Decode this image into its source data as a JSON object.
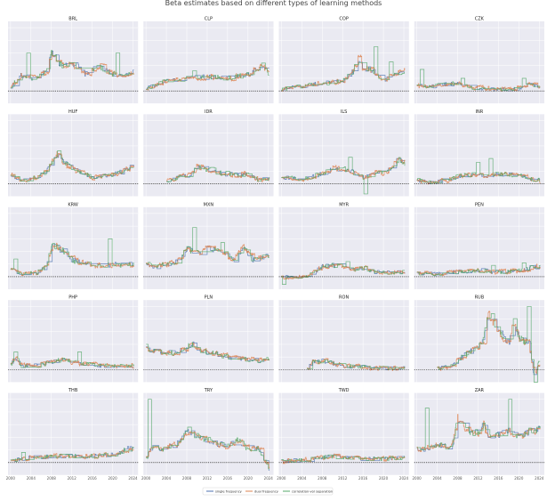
{
  "figure": {
    "title": "Beta estimates based on different types of learning methods"
  },
  "legend": {
    "placement": "bottom-center",
    "items": [
      {
        "label": "single frequency",
        "color": "#4c72b0"
      },
      {
        "label": "dual frequency",
        "color": "#dd8452"
      },
      {
        "label": "correlation-vol separation",
        "color": "#55a868"
      }
    ]
  },
  "chart_data": {
    "type": "line",
    "grid": true,
    "background": "#eaeaf2",
    "reference_line": {
      "y": 0,
      "style": "dashed",
      "color": "#000000"
    },
    "xlim": [
      1999.5,
      2025
    ],
    "ylim": [
      -1,
      5.5
    ],
    "x_ticks": [
      2000,
      2004,
      2008,
      2012,
      2016,
      2020,
      2024
    ],
    "x_tick_labels": [
      "2000",
      "2004",
      "2008",
      "2012",
      "2016",
      "2020",
      "2024"
    ],
    "series_names": [
      "single frequency",
      "dual frequency",
      "correlation-vol separation"
    ],
    "panels": [
      {
        "name": "BRL",
        "start": 2000,
        "knots": [
          [
            2000,
            0.3
          ],
          [
            2002,
            1.2
          ],
          [
            2005,
            1.0
          ],
          [
            2007,
            1.6
          ],
          [
            2008,
            3.0
          ],
          [
            2010,
            2.0
          ],
          [
            2013,
            2.0
          ],
          [
            2015,
            1.2
          ],
          [
            2017,
            2.0
          ],
          [
            2020,
            1.3
          ],
          [
            2022,
            1.2
          ],
          [
            2024,
            1.6
          ]
        ],
        "spikes": [
          [
            2003.5,
            3.0
          ],
          [
            2008.5,
            2.8
          ],
          [
            2021,
            3.0
          ]
        ]
      },
      {
        "name": "CLP",
        "start": 2000,
        "knots": [
          [
            2000,
            0.2
          ],
          [
            2004,
            0.8
          ],
          [
            2008,
            1.0
          ],
          [
            2012,
            1.1
          ],
          [
            2016,
            1.0
          ],
          [
            2020,
            1.3
          ],
          [
            2022,
            1.8
          ],
          [
            2023,
            1.9
          ],
          [
            2024,
            1.4
          ]
        ],
        "spikes": [
          [
            2009.5,
            1.6
          ],
          [
            2023,
            2.2
          ]
        ]
      },
      {
        "name": "COP",
        "start": 2000,
        "knots": [
          [
            2000,
            0.1
          ],
          [
            2004,
            0.4
          ],
          [
            2008,
            0.6
          ],
          [
            2012,
            0.8
          ],
          [
            2014,
            1.5
          ],
          [
            2015,
            2.6
          ],
          [
            2016,
            1.8
          ],
          [
            2018,
            1.6
          ],
          [
            2020,
            0.8
          ],
          [
            2022,
            1.3
          ],
          [
            2024,
            1.6
          ]
        ],
        "spikes": [
          [
            2018.5,
            3.5
          ],
          [
            2021.5,
            2.3
          ]
        ]
      },
      {
        "name": "CZK",
        "start": 2000,
        "knots": [
          [
            2000,
            0.5
          ],
          [
            2002,
            0.3
          ],
          [
            2005,
            0.5
          ],
          [
            2008,
            0.6
          ],
          [
            2010,
            0.3
          ],
          [
            2013,
            0.2
          ],
          [
            2016,
            0.1
          ],
          [
            2020,
            0.2
          ],
          [
            2022,
            0.6
          ],
          [
            2024,
            0.3
          ]
        ],
        "spikes": [
          [
            2001,
            1.7
          ],
          [
            2009,
            1.0
          ],
          [
            2021,
            1.0
          ]
        ]
      },
      {
        "name": "HUF",
        "start": 2000,
        "knots": [
          [
            2000,
            0.7
          ],
          [
            2002,
            0.2
          ],
          [
            2005,
            0.5
          ],
          [
            2007,
            1.0
          ],
          [
            2009,
            2.3
          ],
          [
            2011,
            1.5
          ],
          [
            2013,
            1.0
          ],
          [
            2016,
            0.5
          ],
          [
            2020,
            0.7
          ],
          [
            2022,
            1.0
          ],
          [
            2024,
            1.4
          ]
        ],
        "spikes": [
          [
            2009.5,
            2.6
          ]
        ]
      },
      {
        "name": "IDR",
        "start": 2004,
        "knots": [
          [
            2004,
            0.2
          ],
          [
            2007,
            0.6
          ],
          [
            2009,
            0.8
          ],
          [
            2010,
            1.4
          ],
          [
            2012,
            1.1
          ],
          [
            2015,
            0.8
          ],
          [
            2018,
            0.7
          ],
          [
            2020,
            0.8
          ],
          [
            2022,
            0.3
          ],
          [
            2024,
            0.4
          ]
        ],
        "spikes": [
          [
            2013,
            1.3
          ],
          [
            2016,
            1.0
          ]
        ]
      },
      {
        "name": "ILS",
        "start": 2000,
        "knots": [
          [
            2000,
            0.5
          ],
          [
            2004,
            0.4
          ],
          [
            2008,
            0.8
          ],
          [
            2010,
            1.2
          ],
          [
            2012,
            1.2
          ],
          [
            2014,
            0.9
          ],
          [
            2016,
            0.5
          ],
          [
            2018,
            0.8
          ],
          [
            2020,
            0.9
          ],
          [
            2022,
            1.5
          ],
          [
            2023,
            2.0
          ],
          [
            2024,
            1.6
          ]
        ],
        "spikes": [
          [
            2013.5,
            2.1
          ],
          [
            2016.5,
            -0.8
          ]
        ]
      },
      {
        "name": "INR",
        "start": 2000,
        "knots": [
          [
            2000,
            0.3
          ],
          [
            2002,
            0.1
          ],
          [
            2006,
            0.3
          ],
          [
            2008,
            0.6
          ],
          [
            2010,
            0.7
          ],
          [
            2012,
            0.8
          ],
          [
            2014,
            0.6
          ],
          [
            2016,
            0.8
          ],
          [
            2018,
            0.7
          ],
          [
            2020,
            0.7
          ],
          [
            2022,
            0.4
          ],
          [
            2024,
            0.3
          ]
        ],
        "spikes": [
          [
            2012,
            1.7
          ],
          [
            2014.5,
            2.0
          ]
        ]
      },
      {
        "name": "KRW",
        "start": 2000,
        "knots": [
          [
            2000,
            0.6
          ],
          [
            2002,
            0.2
          ],
          [
            2005,
            0.3
          ],
          [
            2007,
            0.8
          ],
          [
            2008,
            2.6
          ],
          [
            2010,
            2.1
          ],
          [
            2012,
            1.3
          ],
          [
            2015,
            1.0
          ],
          [
            2018,
            0.8
          ],
          [
            2020,
            1.0
          ],
          [
            2022,
            0.9
          ],
          [
            2024,
            1.0
          ]
        ],
        "spikes": [
          [
            2001,
            1.4
          ],
          [
            2019.5,
            3.0
          ]
        ]
      },
      {
        "name": "MXN",
        "start": 2000,
        "knots": [
          [
            2000,
            1.0
          ],
          [
            2002,
            0.8
          ],
          [
            2004,
            1.0
          ],
          [
            2006,
            1.2
          ],
          [
            2008,
            2.2
          ],
          [
            2010,
            1.8
          ],
          [
            2012,
            2.2
          ],
          [
            2015,
            2.0
          ],
          [
            2017,
            1.2
          ],
          [
            2019,
            2.3
          ],
          [
            2021,
            1.3
          ],
          [
            2024,
            1.7
          ]
        ],
        "spikes": [
          [
            2009.5,
            3.9
          ],
          [
            2015,
            2.7
          ]
        ]
      },
      {
        "name": "MYR",
        "start": 2000,
        "knots": [
          [
            2000,
            0
          ],
          [
            2005,
            0
          ],
          [
            2006,
            0.3
          ],
          [
            2008,
            0.8
          ],
          [
            2010,
            0.9
          ],
          [
            2012,
            0.8
          ],
          [
            2014,
            0.6
          ],
          [
            2016,
            0.7
          ],
          [
            2018,
            0.4
          ],
          [
            2020,
            0.3
          ],
          [
            2024,
            0.4
          ]
        ],
        "spikes": [
          [
            2000.5,
            -0.6
          ],
          [
            2013,
            1.2
          ]
        ]
      },
      {
        "name": "PEN",
        "start": 2000,
        "knots": [
          [
            2000,
            0.3
          ],
          [
            2004,
            0.2
          ],
          [
            2008,
            0.4
          ],
          [
            2010,
            0.4
          ],
          [
            2012,
            0.5
          ],
          [
            2015,
            0.4
          ],
          [
            2018,
            0.4
          ],
          [
            2020,
            0.5
          ],
          [
            2022,
            0.7
          ],
          [
            2024,
            0.8
          ]
        ],
        "spikes": [
          [
            2015,
            0.9
          ],
          [
            2021,
            1.1
          ]
        ]
      },
      {
        "name": "PHP",
        "start": 2000,
        "knots": [
          [
            2000,
            0.4
          ],
          [
            2001,
            1.0
          ],
          [
            2002,
            0.3
          ],
          [
            2004,
            0.3
          ],
          [
            2006,
            0.4
          ],
          [
            2008,
            0.6
          ],
          [
            2010,
            0.8
          ],
          [
            2012,
            0.6
          ],
          [
            2014,
            0.5
          ],
          [
            2016,
            0.4
          ],
          [
            2018,
            0.3
          ],
          [
            2020,
            0.3
          ],
          [
            2024,
            0.3
          ]
        ],
        "spikes": [
          [
            2001,
            1.4
          ],
          [
            2013.5,
            1.4
          ]
        ]
      },
      {
        "name": "PLN",
        "start": 2000,
        "knots": [
          [
            2000,
            1.7
          ],
          [
            2002,
            1.4
          ],
          [
            2006,
            1.3
          ],
          [
            2008,
            1.8
          ],
          [
            2009,
            2.1
          ],
          [
            2010,
            1.6
          ],
          [
            2013,
            1.3
          ],
          [
            2016,
            1.0
          ],
          [
            2020,
            0.8
          ],
          [
            2022,
            0.7
          ],
          [
            2024,
            0.9
          ]
        ],
        "spikes": [
          [
            2000,
            2.0
          ]
        ]
      },
      {
        "name": "RON",
        "start": 2005,
        "knots": [
          [
            2005,
            0
          ],
          [
            2006,
            0.6
          ],
          [
            2008,
            0.7
          ],
          [
            2010,
            0.5
          ],
          [
            2012,
            0.3
          ],
          [
            2016,
            0.2
          ],
          [
            2020,
            0.1
          ],
          [
            2024,
            0.1
          ]
        ],
        "spikes": []
      },
      {
        "name": "RUB",
        "start": 2004,
        "knots": [
          [
            2004,
            0.1
          ],
          [
            2007,
            0.3
          ],
          [
            2008,
            0.8
          ],
          [
            2010,
            1.3
          ],
          [
            2012,
            1.8
          ],
          [
            2013,
            2.5
          ],
          [
            2014,
            4.5
          ],
          [
            2016,
            3.0
          ],
          [
            2018,
            2.0
          ],
          [
            2019,
            4.0
          ],
          [
            2020,
            2.5
          ],
          [
            2022,
            2.0
          ],
          [
            2023,
            -0.5
          ],
          [
            2024,
            0.8
          ]
        ],
        "spikes": [
          [
            2022,
            5.0
          ],
          [
            2023.3,
            -1.0
          ]
        ]
      },
      {
        "name": "THB",
        "start": 2000,
        "knots": [
          [
            2000,
            0.1
          ],
          [
            2002,
            0.3
          ],
          [
            2004,
            0.4
          ],
          [
            2008,
            0.5
          ],
          [
            2012,
            0.5
          ],
          [
            2016,
            0.5
          ],
          [
            2019,
            0.6
          ],
          [
            2021,
            0.6
          ],
          [
            2023,
            1.2
          ],
          [
            2024,
            1.0
          ]
        ],
        "spikes": [
          [
            2002.5,
            0.8
          ]
        ]
      },
      {
        "name": "TRY",
        "start": 2000,
        "knots": [
          [
            2000,
            0.3
          ],
          [
            2001,
            1.2
          ],
          [
            2003,
            1.0
          ],
          [
            2006,
            1.5
          ],
          [
            2008,
            2.4
          ],
          [
            2010,
            2.1
          ],
          [
            2012,
            1.8
          ],
          [
            2014,
            1.5
          ],
          [
            2016,
            1.3
          ],
          [
            2018,
            1.8
          ],
          [
            2020,
            1.0
          ],
          [
            2022,
            1.2
          ],
          [
            2023,
            0.3
          ],
          [
            2024,
            -0.5
          ]
        ],
        "spikes": [
          [
            2000.7,
            5.0
          ],
          [
            2008.5,
            2.8
          ]
        ]
      },
      {
        "name": "TWD",
        "start": 2000,
        "knots": [
          [
            2000,
            0.1
          ],
          [
            2004,
            0.2
          ],
          [
            2008,
            0.4
          ],
          [
            2010,
            0.5
          ],
          [
            2012,
            0.4
          ],
          [
            2016,
            0.3
          ],
          [
            2020,
            0.3
          ],
          [
            2024,
            0.4
          ]
        ],
        "spikes": [
          [
            2009.5,
            0.6
          ]
        ]
      },
      {
        "name": "ZAR",
        "start": 2000,
        "knots": [
          [
            2000,
            1.0
          ],
          [
            2002,
            1.1
          ],
          [
            2004,
            1.5
          ],
          [
            2006,
            1.2
          ],
          [
            2007,
            1.6
          ],
          [
            2008,
            3.5
          ],
          [
            2010,
            2.5
          ],
          [
            2012,
            2.3
          ],
          [
            2013,
            3.2
          ],
          [
            2014,
            2.0
          ],
          [
            2016,
            2.2
          ],
          [
            2018,
            2.5
          ],
          [
            2020,
            2.0
          ],
          [
            2022,
            2.5
          ],
          [
            2024,
            2.6
          ]
        ],
        "spikes": [
          [
            2002,
            4.3
          ],
          [
            2018.3,
            5.0
          ]
        ]
      }
    ]
  }
}
